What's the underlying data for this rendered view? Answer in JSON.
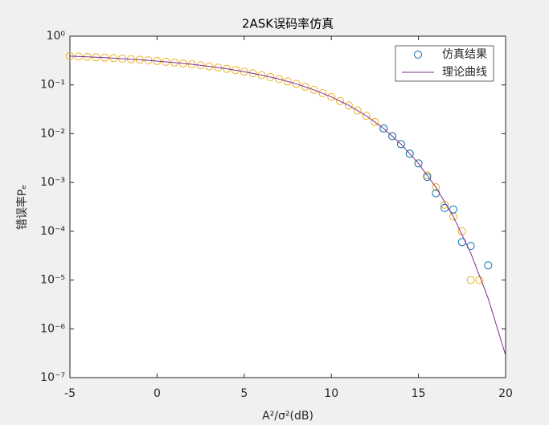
{
  "chart_data": {
    "type": "scatter-line",
    "title": "2ASK误码率仿真",
    "xlabel": "A²/σ²(dB)",
    "ylabel": "错误率Pₑ",
    "log_y": true,
    "legend": "northeast",
    "xlim": [
      -5,
      20
    ],
    "xticks": [
      -5,
      0,
      5,
      10,
      15,
      20
    ],
    "ylim": [
      1e-07,
      1
    ],
    "yticks": [
      {
        "value": 1e-07,
        "label": "10⁻⁷"
      },
      {
        "value": 1e-06,
        "label": "10⁻⁶"
      },
      {
        "value": 1e-05,
        "label": "10⁻⁵"
      },
      {
        "value": 0.0001,
        "label": "10⁻⁴"
      },
      {
        "value": 0.001,
        "label": "10⁻³"
      },
      {
        "value": 0.01,
        "label": "10⁻²"
      },
      {
        "value": 0.1,
        "label": "10⁻¹"
      },
      {
        "value": 1,
        "label": "10⁰"
      }
    ],
    "series": [
      {
        "name": "仿真结果",
        "kind": "marker",
        "color": "#0072bd",
        "x": [
          13,
          13.5,
          14,
          14.5,
          15,
          15.5,
          16,
          16.5,
          17,
          17.5,
          18,
          19
        ],
        "values": [
          0.0128,
          0.0089,
          0.0061,
          0.0039,
          0.00246,
          0.0013,
          0.0006,
          0.0003,
          0.00028,
          6e-05,
          5e-05,
          2e-05
        ]
      },
      {
        "name": "理论曲线",
        "kind": "line",
        "color": "#7e2f8e",
        "x": [
          -5,
          -4,
          -3,
          -2,
          -1,
          0,
          1,
          2,
          3,
          4,
          5,
          6,
          7,
          8,
          9,
          10,
          11,
          12,
          13,
          14,
          15,
          16,
          17,
          18,
          19,
          20
        ],
        "values": [
          0.389,
          0.376,
          0.362,
          0.346,
          0.328,
          0.309,
          0.287,
          0.265,
          0.24,
          0.214,
          0.187,
          0.159,
          0.132,
          0.105,
          0.0794,
          0.0569,
          0.038,
          0.0233,
          0.0128,
          0.0061,
          0.00246,
          0.0008,
          0.0002,
          3.56e-05,
          4.2e-06,
          2.87e-07
        ]
      },
      {
        "kind": "marker",
        "color": "#edb120",
        "x": [
          -5,
          -4.5,
          -4,
          -3.5,
          -3,
          -2.5,
          -2,
          -1.5,
          -1,
          -0.5,
          0,
          0.5,
          1,
          1.5,
          2,
          2.5,
          3,
          3.5,
          4,
          4.5,
          5,
          5.5,
          6,
          6.5,
          7,
          7.5,
          8,
          8.5,
          9,
          9.5,
          10,
          10.5,
          11,
          11.5,
          12,
          12.5,
          13,
          13.5,
          14,
          14.5,
          15,
          15.5,
          16,
          16.5,
          17,
          17.5,
          18,
          18.5
        ],
        "values": [
          0.389,
          0.382,
          0.376,
          0.369,
          0.362,
          0.354,
          0.346,
          0.337,
          0.328,
          0.319,
          0.309,
          0.298,
          0.287,
          0.276,
          0.265,
          0.253,
          0.24,
          0.227,
          0.214,
          0.201,
          0.187,
          0.173,
          0.159,
          0.145,
          0.132,
          0.118,
          0.105,
          0.092,
          0.0794,
          0.0676,
          0.0569,
          0.0467,
          0.038,
          0.0299,
          0.0233,
          0.0174,
          0.0128,
          0.0089,
          0.0061,
          0.0039,
          0.00246,
          0.0014,
          0.0008,
          0.00035,
          0.0002,
          0.0001,
          1e-05,
          1e-05
        ]
      }
    ]
  }
}
